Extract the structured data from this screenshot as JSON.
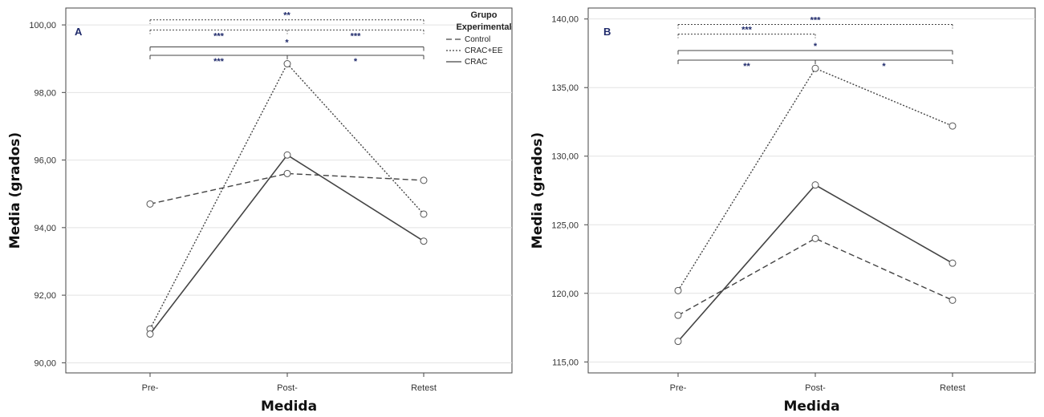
{
  "chart_data": [
    {
      "type": "line",
      "panel_label": "A",
      "xlabel": "Medida",
      "ylabel": "Media (grados)",
      "categories": [
        "Pre-",
        "Post-",
        "Retest"
      ],
      "yticks": [
        "90,00",
        "92,00",
        "94,00",
        "96,00",
        "98,00",
        "100,00"
      ],
      "ylim": [
        89.7,
        100.5
      ],
      "grid": true,
      "series": [
        {
          "name": "Control",
          "style": "dashed",
          "values": [
            94.7,
            95.6,
            95.4
          ]
        },
        {
          "name": "CRAC+EE",
          "style": "dotted",
          "values": [
            91.0,
            98.85,
            94.4
          ]
        },
        {
          "name": "CRAC",
          "style": "solid",
          "values": [
            90.85,
            96.15,
            93.6
          ]
        }
      ],
      "legend": {
        "title_line1": "Grupo",
        "title_line2": "Experimental",
        "items": [
          "Control",
          "CRAC+EE",
          "CRAC"
        ],
        "placement": "top-right"
      },
      "brackets": [
        {
          "style": "dotted",
          "from": 0,
          "to": 2,
          "level": 100.15,
          "stars_mid": "**"
        },
        {
          "style": "dotted",
          "from": 0,
          "to": 2,
          "level": 99.85,
          "divider": 1,
          "stars_left": "***",
          "stars_right": "***"
        },
        {
          "style": "solid",
          "from": 0,
          "to": 2,
          "level": 99.35,
          "stars_mid": "*"
        },
        {
          "style": "solid",
          "from": 0,
          "to": 2,
          "level": 99.1,
          "divider": 1,
          "stars_left": "***",
          "stars_right": "*"
        }
      ]
    },
    {
      "type": "line",
      "panel_label": "B",
      "xlabel": "Medida",
      "ylabel": "Media (grados)",
      "categories": [
        "Pre-",
        "Post-",
        "Retest"
      ],
      "yticks": [
        "115,00",
        "120,00",
        "125,00",
        "130,00",
        "135,00",
        "140,00"
      ],
      "ylim": [
        114.2,
        140.8
      ],
      "grid": true,
      "series": [
        {
          "name": "Control",
          "style": "dashed",
          "values": [
            118.4,
            124.0,
            119.5
          ]
        },
        {
          "name": "CRAC+EE",
          "style": "dotted",
          "values": [
            120.2,
            136.4,
            132.2
          ]
        },
        {
          "name": "CRAC",
          "style": "solid",
          "values": [
            116.5,
            127.9,
            122.2
          ]
        }
      ],
      "brackets": [
        {
          "style": "dotted",
          "from": 0,
          "to": 2,
          "level": 139.6,
          "stars_mid": "***"
        },
        {
          "style": "dotted",
          "from": 0,
          "to": 1,
          "level": 138.9,
          "stars_mid": "***"
        },
        {
          "style": "solid",
          "from": 0,
          "to": 2,
          "level": 137.7,
          "stars_mid": "*"
        },
        {
          "style": "solid",
          "from": 0,
          "to": 2,
          "level": 137.0,
          "divider": 1,
          "stars_left": "**",
          "stars_right": "*"
        }
      ]
    }
  ]
}
